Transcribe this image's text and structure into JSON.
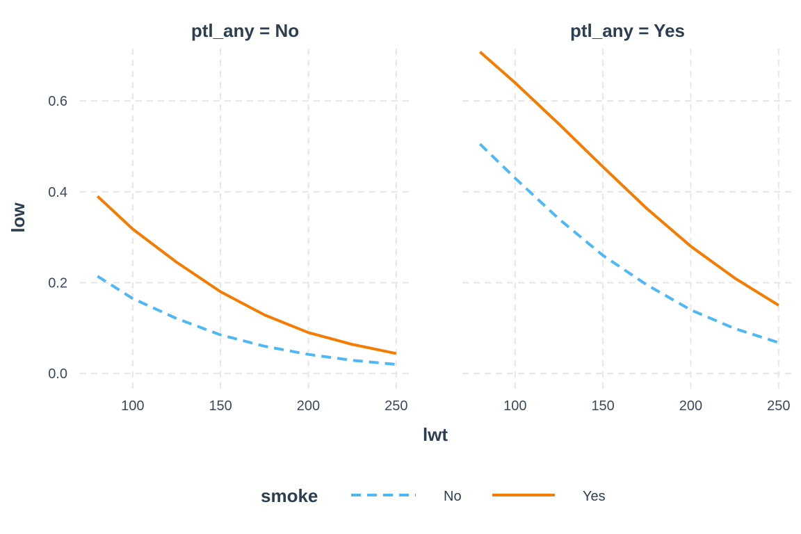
{
  "chart_data": {
    "type": "line",
    "xlabel": "lwt",
    "ylabel": "low",
    "xlim": [
      70,
      258
    ],
    "ylim": [
      -0.035,
      0.715
    ],
    "x_ticks": [
      100,
      150,
      200,
      250
    ],
    "y_ticks": [
      0.0,
      0.2,
      0.4,
      0.6
    ],
    "x_tick_labels": [
      "100",
      "150",
      "200",
      "250"
    ],
    "y_tick_labels": [
      "0.0",
      "0.2",
      "0.4",
      "0.6"
    ],
    "grid": true,
    "legend": {
      "title": "smoke",
      "position": "bottom",
      "entries": [
        {
          "label": "No",
          "color": "#4db8f5",
          "dashed": true
        },
        {
          "label": "Yes",
          "color": "#f57c00",
          "dashed": false
        }
      ]
    },
    "panels": [
      {
        "title": "ptl_any = No",
        "series": [
          {
            "name": "No",
            "color": "#4db8f5",
            "dashed": true,
            "x": [
              80,
              100,
              125,
              150,
              175,
              200,
              225,
              250
            ],
            "y": [
              0.214,
              0.165,
              0.121,
              0.085,
              0.06,
              0.042,
              0.029,
              0.02
            ]
          },
          {
            "name": "Yes",
            "color": "#f57c00",
            "dashed": false,
            "x": [
              80,
              100,
              125,
              150,
              175,
              200,
              225,
              250
            ],
            "y": [
              0.39,
              0.318,
              0.245,
              0.18,
              0.129,
              0.09,
              0.064,
              0.044
            ]
          }
        ]
      },
      {
        "title": "ptl_any = Yes",
        "series": [
          {
            "name": "No",
            "color": "#4db8f5",
            "dashed": true,
            "x": [
              80,
              100,
              125,
              150,
              175,
              200,
              225,
              250
            ],
            "y": [
              0.505,
              0.43,
              0.34,
              0.26,
              0.195,
              0.14,
              0.099,
              0.068
            ]
          },
          {
            "name": "Yes",
            "color": "#f57c00",
            "dashed": false,
            "x": [
              80,
              100,
              125,
              150,
              175,
              200,
              225,
              250
            ],
            "y": [
              0.708,
              0.64,
              0.549,
              0.455,
              0.363,
              0.28,
              0.21,
              0.15
            ]
          }
        ]
      }
    ]
  }
}
